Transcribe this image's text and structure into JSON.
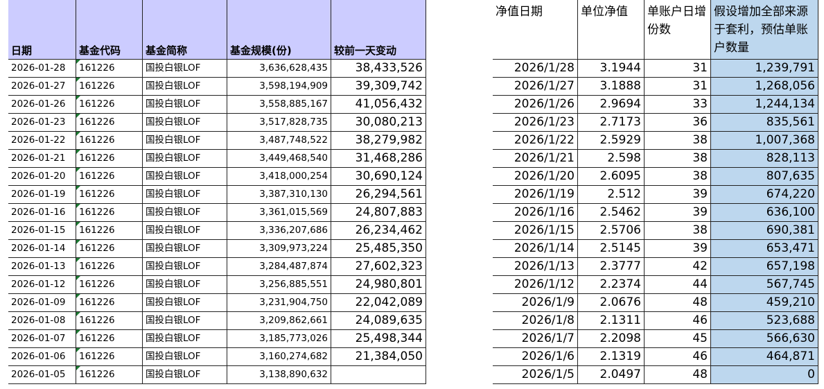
{
  "left_table": {
    "headers": [
      "日期",
      "基金代码",
      "基金简称",
      "基金规模(份)",
      "较前一天变动"
    ],
    "rows": [
      [
        "2026-01-28",
        "161226",
        "国投白银LOF",
        "3,636,628,435",
        "38,433,526"
      ],
      [
        "2026-01-27",
        "161226",
        "国投白银LOF",
        "3,598,194,909",
        "39,309,742"
      ],
      [
        "2026-01-26",
        "161226",
        "国投白银LOF",
        "3,558,885,167",
        "41,056,432"
      ],
      [
        "2026-01-23",
        "161226",
        "国投白银LOF",
        "3,517,828,735",
        "30,080,213"
      ],
      [
        "2026-01-22",
        "161226",
        "国投白银LOF",
        "3,487,748,522",
        "38,279,982"
      ],
      [
        "2026-01-21",
        "161226",
        "国投白银LOF",
        "3,449,468,540",
        "31,468,286"
      ],
      [
        "2026-01-20",
        "161226",
        "国投白银LOF",
        "3,418,000,254",
        "30,690,124"
      ],
      [
        "2026-01-19",
        "161226",
        "国投白银LOF",
        "3,387,310,130",
        "26,294,561"
      ],
      [
        "2026-01-16",
        "161226",
        "国投白银LOF",
        "3,361,015,569",
        "24,807,883"
      ],
      [
        "2026-01-15",
        "161226",
        "国投白银LOF",
        "3,336,207,686",
        "26,234,462"
      ],
      [
        "2026-01-14",
        "161226",
        "国投白银LOF",
        "3,309,973,224",
        "25,485,350"
      ],
      [
        "2026-01-13",
        "161226",
        "国投白银LOF",
        "3,284,487,874",
        "27,602,323"
      ],
      [
        "2026-01-12",
        "161226",
        "国投白银LOF",
        "3,256,885,551",
        "24,980,801"
      ],
      [
        "2026-01-09",
        "161226",
        "国投白银LOF",
        "3,231,904,750",
        "22,042,089"
      ],
      [
        "2026-01-08",
        "161226",
        "国投白银LOF",
        "3,209,862,661",
        "24,089,635"
      ],
      [
        "2026-01-07",
        "161226",
        "国投白银LOF",
        "3,185,773,026",
        "25,498,344"
      ],
      [
        "2026-01-06",
        "161226",
        "国投白银LOF",
        "3,160,274,682",
        "21,384,050"
      ],
      [
        "2026-01-05",
        "161226",
        "国投白银LOF",
        "3,138,890,632",
        null
      ]
    ]
  },
  "right_table": {
    "headers": [
      "净值日期",
      "单位净值",
      "单账户日增份数",
      "假设增加全部来源于套利，预估单账户数量"
    ],
    "rows": [
      [
        "2026/1/28",
        "3.1944",
        "31",
        "1,239,791"
      ],
      [
        "2026/1/27",
        "3.1888",
        "31",
        "1,268,056"
      ],
      [
        "2026/1/26",
        "2.9694",
        "33",
        "1,244,134"
      ],
      [
        "2026/1/23",
        "2.7173",
        "36",
        "835,561"
      ],
      [
        "2026/1/22",
        "2.5929",
        "38",
        "1,007,368"
      ],
      [
        "2026/1/21",
        "2.598",
        "38",
        "828,113"
      ],
      [
        "2026/1/20",
        "2.6095",
        "38",
        "807,635"
      ],
      [
        "2026/1/19",
        "2.512",
        "39",
        "674,220"
      ],
      [
        "2026/1/16",
        "2.5462",
        "39",
        "636,100"
      ],
      [
        "2026/1/15",
        "2.5706",
        "38",
        "690,381"
      ],
      [
        "2026/1/14",
        "2.5145",
        "39",
        "653,471"
      ],
      [
        "2026/1/13",
        "2.3777",
        "42",
        "657,198"
      ],
      [
        "2026/1/12",
        "2.2374",
        "44",
        "567,745"
      ],
      [
        "2026/1/9",
        "2.0676",
        "48",
        "459,210"
      ],
      [
        "2026/1/8",
        "2.1311",
        "46",
        "523,688"
      ],
      [
        "2026/1/7",
        "2.2098",
        "45",
        "566,630"
      ],
      [
        "2026/1/6",
        "2.1319",
        "46",
        "464,871"
      ],
      [
        "2026/1/5",
        "2.0497",
        "48",
        "0"
      ]
    ]
  }
}
